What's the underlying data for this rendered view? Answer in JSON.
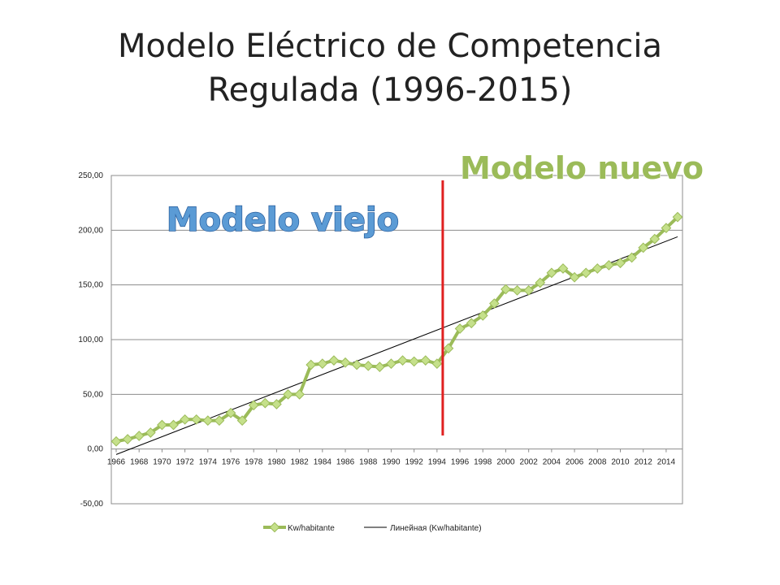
{
  "slide": {
    "title_line1": "Modelo Eléctrico de Competencia",
    "title_line2": "Regulada (1996-2015)"
  },
  "callouts": {
    "old_model": "Modelo viejo",
    "new_model": "Modelo nuevo"
  },
  "colors": {
    "series": "#9bbb59",
    "marker": "#c5e08b",
    "trend": "#000000",
    "divider": "#e02020",
    "old_model_text": "#5b9bd5",
    "new_model_text": "#9bbb59"
  },
  "chart_data": {
    "type": "line",
    "title": "",
    "xlabel": "",
    "ylabel": "",
    "ylim": [
      -50,
      250
    ],
    "y_ticks": [
      "250,00",
      "200,00",
      "150,00",
      "100,00",
      "50,00",
      "0,00",
      "-50,00"
    ],
    "y_tick_values": [
      250,
      200,
      150,
      100,
      50,
      0,
      -50
    ],
    "x_tick_labels": [
      "1966",
      "1968",
      "1970",
      "1972",
      "1974",
      "1976",
      "1978",
      "1980",
      "1982",
      "1984",
      "1986",
      "1988",
      "1990",
      "1992",
      "1994",
      "1996",
      "1998",
      "2000",
      "2002",
      "2004",
      "2006",
      "2008",
      "2010",
      "2012",
      "2014"
    ],
    "grid": true,
    "legend_position": "bottom",
    "x": [
      1966,
      1967,
      1968,
      1969,
      1970,
      1971,
      1972,
      1973,
      1974,
      1975,
      1976,
      1977,
      1978,
      1979,
      1980,
      1981,
      1982,
      1983,
      1984,
      1985,
      1986,
      1987,
      1988,
      1989,
      1990,
      1991,
      1992,
      1993,
      1994,
      1995,
      1996,
      1997,
      1998,
      1999,
      2000,
      2001,
      2002,
      2003,
      2004,
      2005,
      2006,
      2007,
      2008,
      2009,
      2010,
      2011,
      2012,
      2013,
      2014,
      2015
    ],
    "series": [
      {
        "name": "Kw/habitante",
        "values": [
          7,
          9,
          12,
          15,
          22,
          22,
          27,
          27,
          26,
          26,
          33,
          26,
          40,
          42,
          41,
          50,
          50,
          77,
          78,
          81,
          79,
          77,
          76,
          75,
          78,
          81,
          80,
          81,
          78,
          92,
          110,
          115,
          122,
          133,
          146,
          145,
          145,
          152,
          161,
          165,
          157,
          161,
          165,
          168,
          170,
          175,
          184,
          192,
          202,
          212
        ]
      }
    ],
    "trendline": {
      "name": "Линейная (Kw/habitante)",
      "type": "linear",
      "start": {
        "x": 1966,
        "y": -5
      },
      "end": {
        "x": 2015,
        "y": 194
      }
    },
    "divider_year": 1994.5
  }
}
